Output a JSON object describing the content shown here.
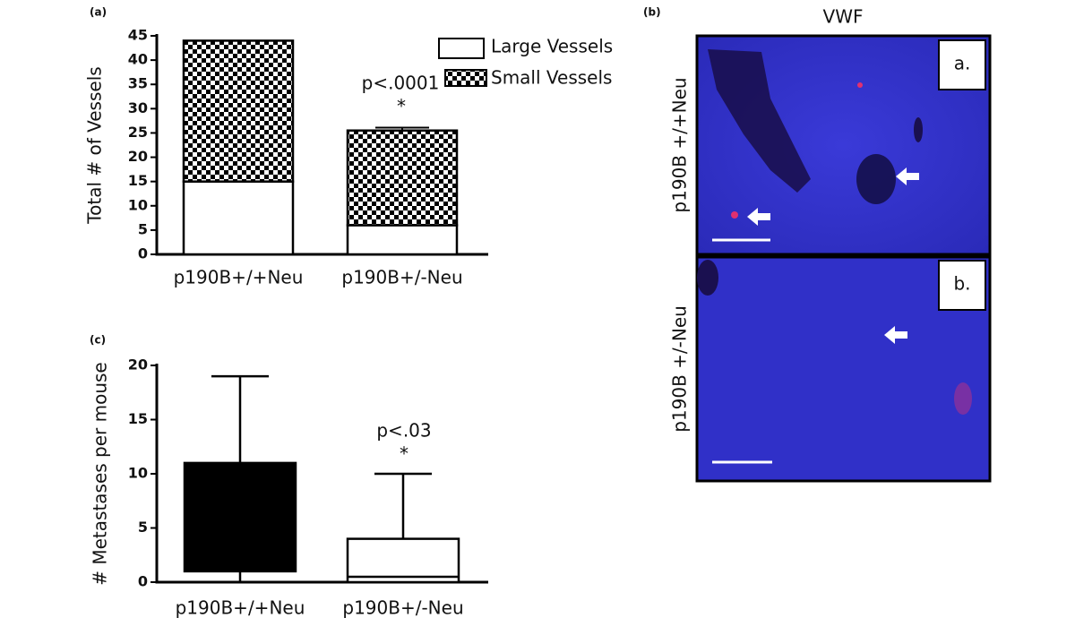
{
  "chart_data": [
    {
      "type": "bar",
      "panel": "(a)",
      "y_label": "Total # of Vessels",
      "categories": [
        "p190B+/+Neu",
        "p190B+/-Neu"
      ],
      "series": [
        {
          "name": "Large Vessels",
          "color": "#ffffff",
          "values": [
            15,
            6
          ]
        },
        {
          "name": "Small Vessels",
          "color": "checker",
          "values": [
            29,
            19.5
          ],
          "errors": [
            null,
            0.6
          ]
        }
      ],
      "ylim": [
        0,
        45
      ],
      "yticks": [
        0,
        5,
        10,
        15,
        20,
        25,
        30,
        35,
        40,
        45
      ],
      "annotation": "p<.0001",
      "significance": "*",
      "legend": "top-right"
    },
    {
      "type": "box",
      "panel": "(c)",
      "y_label": "# Metastases per mouse",
      "categories": [
        "p190B+/+Neu",
        "p190B+/-Neu"
      ],
      "colors": [
        "#000000",
        "#ffffff"
      ],
      "min": [
        0,
        0
      ],
      "q1": [
        1,
        0
      ],
      "median": [
        null,
        0.5
      ],
      "q3": [
        11,
        4
      ],
      "max": [
        19,
        10
      ],
      "ylim": [
        0,
        20
      ],
      "yticks": [
        0,
        5,
        10,
        15,
        20
      ],
      "annotation": "p<.03",
      "significance": "*"
    }
  ],
  "panel_b": {
    "panel": "(b)",
    "title": "VWF",
    "images": [
      {
        "row_label": "p190B +/+Neu",
        "tag": "a."
      },
      {
        "row_label": "p190B +/-Neu",
        "tag": "b."
      }
    ]
  }
}
